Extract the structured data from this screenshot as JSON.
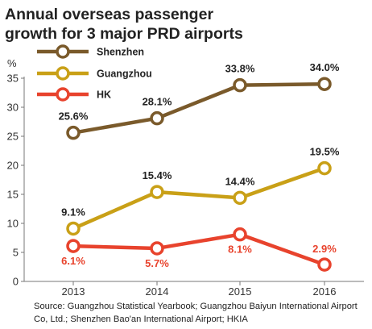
{
  "title": [
    "Annual overseas passenger",
    "growth for 3 major PRD airports"
  ],
  "ylabel": "%",
  "source": [
    "Source: Guangzhou Statistical Yearbook; Guangzhou Baiyun International Airport",
    "Co, Ltd.; Shenzhen Bao'an International Airport; HKIA"
  ],
  "chart_data": {
    "type": "line",
    "title": "Annual overseas passenger growth for 3 major PRD airports",
    "xlabel": "",
    "ylabel": "%",
    "categories": [
      "2013",
      "2014",
      "2015",
      "2016"
    ],
    "ylim": [
      0,
      35
    ],
    "yticks": [
      0,
      5,
      10,
      15,
      20,
      25,
      30,
      35
    ],
    "grid": false,
    "legend": "top-left",
    "series": [
      {
        "name": "Shenzhen",
        "color": "#7a5a2b",
        "values": [
          25.6,
          28.1,
          33.8,
          34.0
        ],
        "labels": [
          "25.6%",
          "28.1%",
          "33.8%",
          "34.0%"
        ]
      },
      {
        "name": "Guangzhou",
        "color": "#c9a017",
        "values": [
          9.1,
          15.4,
          14.4,
          19.5
        ],
        "labels": [
          "9.1%",
          "15.4%",
          "14.4%",
          "19.5%"
        ]
      },
      {
        "name": "HK",
        "color": "#e8432d",
        "values": [
          6.1,
          5.7,
          8.1,
          2.9
        ],
        "labels": [
          "6.1%",
          "5.7%",
          "8.1%",
          "2.9%"
        ]
      }
    ]
  }
}
